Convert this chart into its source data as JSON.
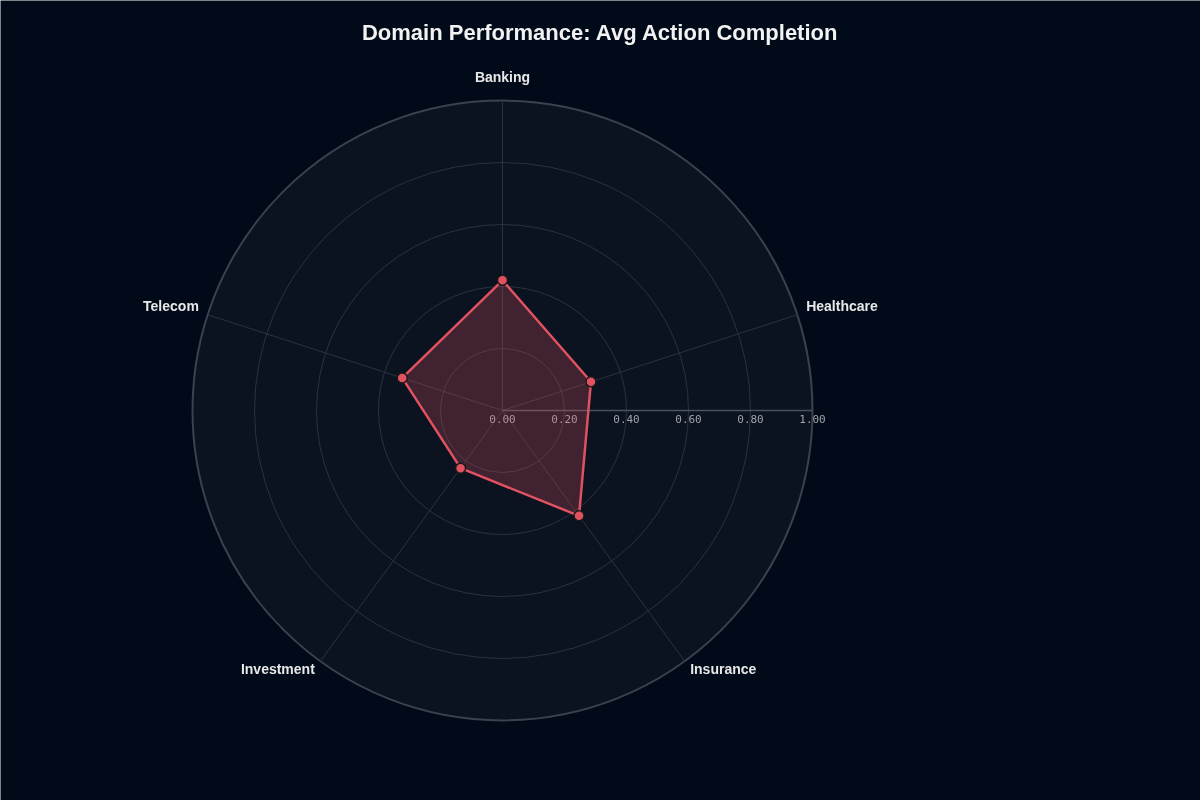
{
  "chart_data": {
    "type": "radar",
    "title": "Domain Performance: Avg Action Completion",
    "categories": [
      "Banking",
      "Healthcare",
      "Insurance",
      "Investment",
      "Telecom"
    ],
    "series": [
      {
        "color": "#e05260",
        "values": [
          0.42,
          0.3,
          0.42,
          0.23,
          0.34
        ]
      }
    ],
    "ylim": [
      0,
      1
    ],
    "yticks": [
      {
        "value": 0,
        "label": "0.00"
      },
      {
        "value": 0.2,
        "label": "0.20"
      },
      {
        "value": 0.4,
        "label": "0.40"
      },
      {
        "value": 0.6,
        "label": "0.60"
      },
      {
        "value": 0.8,
        "label": "0.80"
      },
      {
        "value": 1,
        "label": "1.00"
      }
    ],
    "grid": true,
    "marker": "circle",
    "line_style": "solid"
  }
}
